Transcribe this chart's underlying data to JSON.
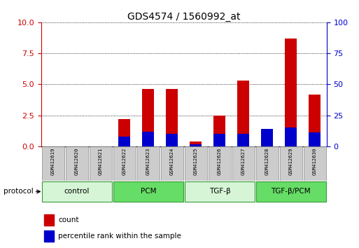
{
  "title": "GDS4574 / 1560992_at",
  "samples": [
    "GSM412619",
    "GSM412620",
    "GSM412621",
    "GSM412622",
    "GSM412623",
    "GSM412624",
    "GSM412625",
    "GSM412626",
    "GSM412627",
    "GSM412628",
    "GSM412629",
    "GSM412630"
  ],
  "count_values": [
    0.0,
    0.0,
    0.0,
    2.2,
    4.65,
    4.65,
    0.4,
    2.45,
    5.3,
    0.0,
    8.7,
    4.2
  ],
  "percentile_values": [
    0.0,
    0.0,
    0.0,
    8.0,
    12.0,
    10.0,
    1.5,
    10.0,
    10.0,
    14.0,
    15.0,
    11.0
  ],
  "ylim_left": [
    0,
    10
  ],
  "ylim_right": [
    0,
    100
  ],
  "yticks_left": [
    0,
    2.5,
    5,
    7.5,
    10
  ],
  "yticks_right": [
    0,
    25,
    50,
    75,
    100
  ],
  "groups": [
    {
      "label": "control",
      "start": 0,
      "end": 3,
      "color": "#d6f5d6"
    },
    {
      "label": "PCM",
      "start": 3,
      "end": 6,
      "color": "#66dd66"
    },
    {
      "label": "TGF-β",
      "start": 6,
      "end": 9,
      "color": "#d6f5d6"
    },
    {
      "label": "TGF-β/PCM",
      "start": 9,
      "end": 12,
      "color": "#66dd66"
    }
  ],
  "bar_width": 0.5,
  "red_color": "#cc0000",
  "blue_color": "#0000cc",
  "left_axis_color": "#cc0000",
  "right_axis_color": "#0000cc",
  "grid_color": "black",
  "bg_color": "white",
  "plot_bg": "white",
  "legend_count_label": "count",
  "legend_pct_label": "percentile rank within the sample",
  "protocol_label": "protocol",
  "sample_box_color": "#cccccc",
  "group_border_color": "#339933"
}
